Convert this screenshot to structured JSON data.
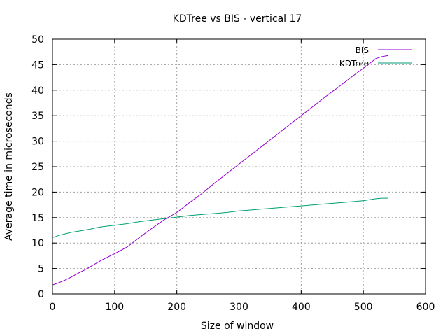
{
  "chart_data": {
    "type": "line",
    "title": "KDTree vs BIS - vertical 17",
    "xlabel": "Size of window",
    "ylabel": "Average time in microseconds",
    "xlim": [
      0,
      600
    ],
    "ylim": [
      0,
      50
    ],
    "xticks": [
      0,
      100,
      200,
      300,
      400,
      500,
      600
    ],
    "yticks": [
      0,
      5,
      10,
      15,
      20,
      25,
      30,
      35,
      40,
      45,
      50
    ],
    "grid": true,
    "legend": "top-right",
    "series": [
      {
        "name": "BIS",
        "color": "#9400d3",
        "x": [
          1,
          10,
          20,
          30,
          40,
          50,
          60,
          70,
          80,
          100,
          120,
          140,
          160,
          180,
          200,
          220,
          240,
          260,
          280,
          300,
          320,
          340,
          360,
          380,
          400,
          420,
          440,
          460,
          480,
          500,
          510,
          520,
          530,
          540
        ],
        "y": [
          1.8,
          2.2,
          2.7,
          3.3,
          4.0,
          4.6,
          5.3,
          6.0,
          6.7,
          7.9,
          9.2,
          11.1,
          12.9,
          14.6,
          16.0,
          17.9,
          19.7,
          21.7,
          23.6,
          25.5,
          27.4,
          29.3,
          31.2,
          33.1,
          35.0,
          36.9,
          38.8,
          40.6,
          42.5,
          44.3,
          45.2,
          46.2,
          46.6,
          46.8
        ]
      },
      {
        "name": "KDTree",
        "color": "#009e73",
        "x": [
          1,
          10,
          20,
          30,
          40,
          50,
          60,
          70,
          80,
          100,
          120,
          140,
          160,
          180,
          200,
          220,
          240,
          260,
          280,
          300,
          320,
          340,
          360,
          380,
          400,
          420,
          440,
          460,
          480,
          500,
          510,
          520,
          530,
          540
        ],
        "y": [
          11.1,
          11.5,
          11.8,
          12.1,
          12.3,
          12.5,
          12.7,
          13.0,
          13.2,
          13.5,
          13.8,
          14.2,
          14.5,
          14.8,
          15.1,
          15.4,
          15.6,
          15.8,
          16.0,
          16.3,
          16.5,
          16.7,
          16.9,
          17.1,
          17.3,
          17.5,
          17.7,
          17.9,
          18.1,
          18.3,
          18.5,
          18.7,
          18.8,
          18.8
        ]
      }
    ]
  }
}
